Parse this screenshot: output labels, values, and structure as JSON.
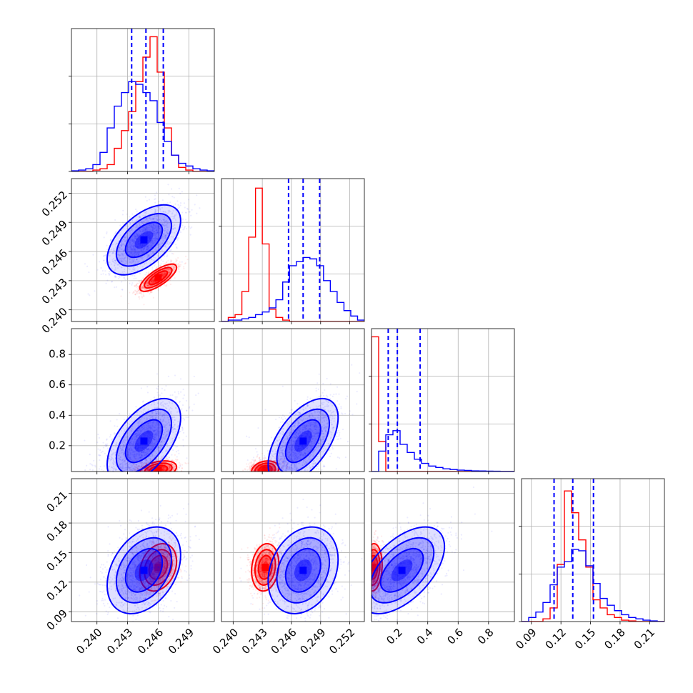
{
  "chart_data": {
    "type": "corner",
    "grid": true,
    "colors": {
      "red": "#ff0000",
      "blue": "#0000ff"
    },
    "quantile_lines": {
      "color": "#0000ff",
      "style": "dashed"
    },
    "params": [
      {
        "range": [
          0.2375,
          0.2515
        ],
        "ticks": [
          0.24,
          0.243,
          0.246,
          0.249
        ],
        "tick_labels": [
          "0.240",
          "0.243",
          "0.246",
          "0.249"
        ],
        "quantiles": [
          0.2434,
          0.2448,
          0.2465
        ]
      },
      {
        "range": [
          0.2388,
          0.2535
        ],
        "ticks": [
          0.24,
          0.243,
          0.246,
          0.249,
          0.252
        ],
        "tick_labels": [
          "0.240",
          "0.243",
          "0.246",
          "0.249",
          "0.252"
        ],
        "quantiles": [
          0.2457,
          0.2472,
          0.2489
        ]
      },
      {
        "range": [
          0.03,
          0.97
        ],
        "ticks": [
          0.2,
          0.4,
          0.6,
          0.8
        ],
        "tick_labels": [
          "0.2",
          "0.4",
          "0.6",
          "0.8"
        ],
        "quantiles": [
          0.14,
          0.2,
          0.35
        ]
      },
      {
        "range": [
          0.08,
          0.225
        ],
        "ticks": [
          0.09,
          0.12,
          0.15,
          0.18,
          0.21
        ],
        "tick_labels": [
          "0.09",
          "0.12",
          "0.15",
          "0.18",
          "0.21"
        ],
        "quantiles": [
          0.113,
          0.132,
          0.153
        ]
      }
    ],
    "series": [
      {
        "color": "#ff0000",
        "mean": [
          0.246,
          0.2433,
          0.04,
          0.135
        ],
        "sd": [
          0.0009,
          0.0007,
          0.03,
          0.012
        ]
      },
      {
        "color": "#0000ff",
        "mean": [
          0.2446,
          0.2472,
          0.23,
          0.132
        ],
        "sd": [
          0.0018,
          0.0018,
          0.14,
          0.022
        ]
      }
    ],
    "histograms": [
      {
        "param": 0,
        "bins_edges": [
          0.2375,
          0.2382,
          0.2389,
          0.2396,
          0.2403,
          0.241,
          0.2417,
          0.2424,
          0.2431,
          0.2438,
          0.2445,
          0.2452,
          0.2459,
          0.2466,
          0.2473,
          0.248,
          0.2487,
          0.2494,
          0.2501,
          0.2508,
          0.2515
        ],
        "counts": {
          "blue": [
            0.005,
            0.01,
            0.02,
            0.05,
            0.14,
            0.32,
            0.48,
            0.58,
            0.66,
            0.64,
            0.58,
            0.52,
            0.36,
            0.22,
            0.12,
            0.06,
            0.04,
            0.02,
            0.01,
            0.005
          ],
          "red": [
            0.0,
            0.0,
            0.0,
            0.01,
            0.02,
            0.05,
            0.17,
            0.3,
            0.44,
            0.66,
            0.84,
            0.99,
            0.73,
            0.32,
            0.12,
            0.03,
            0.01,
            0.0,
            0.0,
            0.0
          ]
        }
      },
      {
        "param": 1,
        "bins_edges": [
          0.2388,
          0.2395,
          0.2402,
          0.2409,
          0.2416,
          0.2423,
          0.243,
          0.2437,
          0.2444,
          0.2451,
          0.2458,
          0.2465,
          0.2472,
          0.2479,
          0.2486,
          0.2493,
          0.25,
          0.2507,
          0.2514,
          0.2521,
          0.2528,
          0.2535
        ],
        "counts": {
          "blue": [
            0.0,
            0.01,
            0.01,
            0.02,
            0.03,
            0.05,
            0.07,
            0.1,
            0.16,
            0.29,
            0.41,
            0.44,
            0.47,
            0.46,
            0.41,
            0.3,
            0.22,
            0.14,
            0.08,
            0.04,
            0.01
          ],
          "red": [
            0.0,
            0.03,
            0.05,
            0.22,
            0.62,
            0.98,
            0.57,
            0.09,
            0.03,
            0.01,
            0.0,
            0.0,
            0.0,
            0.0,
            0.0,
            0.0,
            0.0,
            0.0,
            0.0,
            0.0,
            0.0
          ]
        }
      },
      {
        "param": 2,
        "bins_edges": [
          0.03,
          0.077,
          0.124,
          0.171,
          0.218,
          0.265,
          0.312,
          0.359,
          0.406,
          0.453,
          0.5,
          0.547,
          0.594,
          0.641,
          0.688,
          0.735,
          0.782,
          0.829,
          0.876,
          0.923,
          0.97
        ],
        "counts": {
          "blue": [
            0.0,
            0.15,
            0.27,
            0.3,
            0.2,
            0.14,
            0.09,
            0.06,
            0.04,
            0.03,
            0.02,
            0.015,
            0.01,
            0.008,
            0.005,
            0.004,
            0.003,
            0.002,
            0.001,
            0.001
          ],
          "red": [
            0.99,
            0.22,
            0.0,
            0.0,
            0.0,
            0.0,
            0.0,
            0.0,
            0.0,
            0.0,
            0.0,
            0.0,
            0.0,
            0.0,
            0.0,
            0.0,
            0.0,
            0.0,
            0.0,
            0.0
          ]
        }
      },
      {
        "param": 3,
        "bins_edges": [
          0.08,
          0.08725,
          0.0945,
          0.10175,
          0.109,
          0.11625,
          0.1235,
          0.13075,
          0.138,
          0.14525,
          0.1525,
          0.15975,
          0.167,
          0.17425,
          0.1815,
          0.18875,
          0.196,
          0.20325,
          0.2105,
          0.21775,
          0.225
        ],
        "counts": {
          "blue": [
            0.0,
            0.03,
            0.07,
            0.14,
            0.27,
            0.4,
            0.44,
            0.53,
            0.52,
            0.41,
            0.28,
            0.17,
            0.12,
            0.08,
            0.05,
            0.03,
            0.02,
            0.01,
            0.005,
            0.0
          ],
          "red": [
            0.0,
            0.0,
            0.0,
            0.02,
            0.1,
            0.42,
            0.96,
            0.8,
            0.6,
            0.4,
            0.16,
            0.1,
            0.05,
            0.03,
            0.01,
            0.005,
            0.0,
            0.0,
            0.0,
            0.0
          ]
        }
      }
    ]
  }
}
